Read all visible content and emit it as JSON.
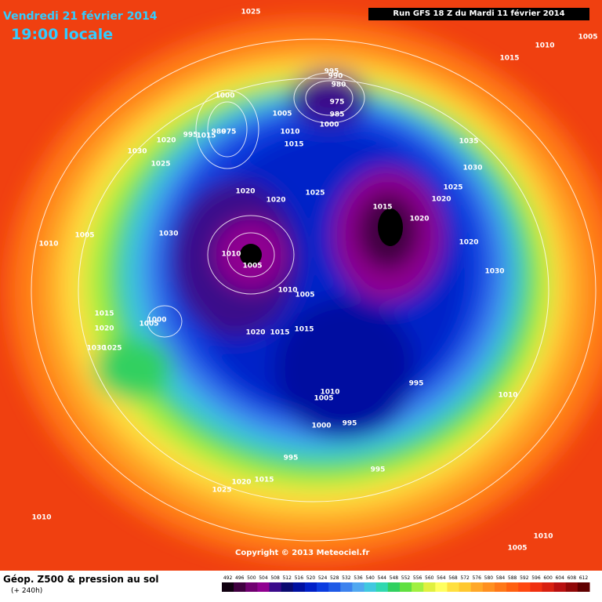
{
  "header": {
    "date": "Vendredi 21 février 2014",
    "time": "19:00 locale",
    "run": "Run GFS 18 Z du Mardi 11 février 2014"
  },
  "copyright": "Copyright © 2013 Meteociel.fr",
  "footer": {
    "title": "Géop. Z500 & pression au sol",
    "subtitle": "(+ 240h)"
  },
  "legend": {
    "labels": [
      492,
      496,
      500,
      504,
      508,
      512,
      516,
      520,
      524,
      528,
      532,
      536,
      540,
      544,
      548,
      552,
      556,
      560,
      564,
      568,
      572,
      576,
      580,
      584,
      588,
      592,
      596,
      600,
      604,
      608,
      612
    ],
    "colors": [
      "#100010",
      "#400040",
      "#700070",
      "#900090",
      "#3a0a8a",
      "#0a0a70",
      "#0010a0",
      "#0020c8",
      "#0a3ce0",
      "#1e5ae6",
      "#3c82ee",
      "#50a8f0",
      "#40c8e0",
      "#30d8b0",
      "#30d060",
      "#60e040",
      "#a0f040",
      "#e0f040",
      "#ffff60",
      "#ffe040",
      "#ffc830",
      "#ffa828",
      "#ff9020",
      "#ff7818",
      "#ff6010",
      "#ff4810",
      "#f03010",
      "#d82010",
      "#b81010",
      "#900808",
      "#600000"
    ]
  },
  "isobars": [
    "1025",
    "1010",
    "1005",
    "1015",
    "995",
    "990",
    "980",
    "975",
    "985",
    "1000",
    "1000",
    "1005",
    "1010",
    "1015",
    "995",
    "980",
    "975",
    "1015",
    "1020",
    "1030",
    "1025",
    "1035",
    "1030",
    "1025",
    "1020",
    "1020",
    "1020",
    "1025",
    "1015",
    "1020",
    "1020",
    "1030",
    "1005",
    "1010",
    "1030",
    "1010",
    "1005",
    "1010",
    "1005",
    "1015",
    "1020",
    "1005",
    "1000",
    "1030",
    "1025",
    "1020",
    "1015",
    "1015",
    "995",
    "1010",
    "1005",
    "1010",
    "1000",
    "995",
    "995",
    "995",
    "1020",
    "1015",
    "1025",
    "1010",
    "1010",
    "1005"
  ]
}
